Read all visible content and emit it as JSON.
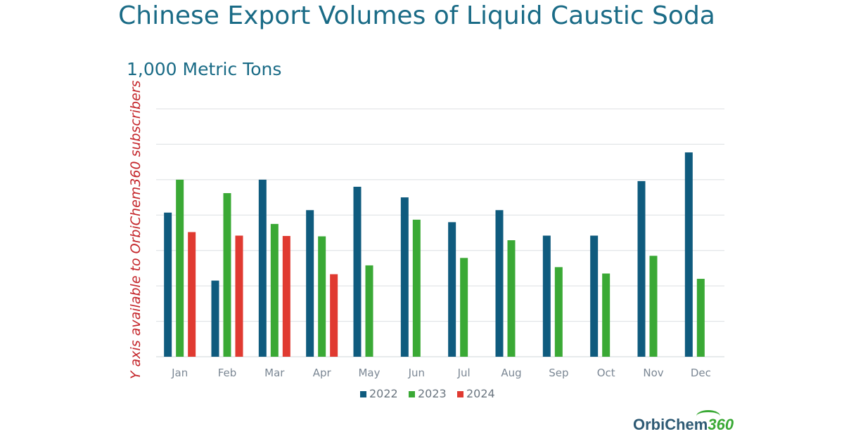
{
  "chart_data": {
    "type": "bar",
    "title": "Chinese Export Volumes of Liquid Caustic Soda",
    "subtitle": "1,000 Metric Tons",
    "ylabel": "Y axis available to OrbiChem360 subscribers",
    "categories": [
      "Jan",
      "Feb",
      "Mar",
      "Apr",
      "May",
      "Jun",
      "Jul",
      "Aug",
      "Sep",
      "Oct",
      "Nov",
      "Dec"
    ],
    "ylim": [
      0,
      7
    ],
    "grid": true,
    "legend_position": "bottom",
    "series": [
      {
        "name": "2022",
        "color": "#0f5b7e",
        "values": [
          4.07,
          2.15,
          5.0,
          4.14,
          4.8,
          4.5,
          3.8,
          4.14,
          3.42,
          3.42,
          4.96,
          5.77
        ]
      },
      {
        "name": "2023",
        "color": "#3aa935",
        "values": [
          5.0,
          4.62,
          3.75,
          3.4,
          2.58,
          3.87,
          2.79,
          3.29,
          2.53,
          2.35,
          2.85,
          2.2
        ]
      },
      {
        "name": "2024",
        "color": "#e03a31",
        "values": [
          3.52,
          3.42,
          3.41,
          2.33,
          null,
          null,
          null,
          null,
          null,
          null,
          null,
          null
        ]
      }
    ]
  },
  "logo": {
    "text": "OrbiChem",
    "number": "360"
  }
}
